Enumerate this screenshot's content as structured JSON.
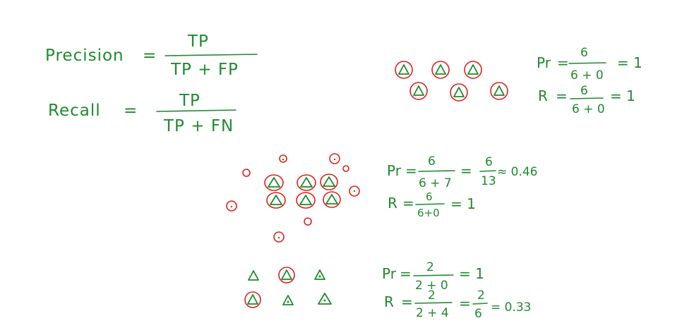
{
  "formulas": {
    "precision": {
      "label": "Precision",
      "eq": "=",
      "numerator": "TP",
      "denominator": "TP + FP"
    },
    "recall": {
      "label": "Recall",
      "eq": "=",
      "numerator": "TP",
      "denominator": "TP + FN"
    }
  },
  "example1": {
    "pr": {
      "label": "Pr",
      "eq": "=",
      "num": "6",
      "den": "6 + 0",
      "result": "= 1"
    },
    "r": {
      "label": "R",
      "eq": "=",
      "num": "6",
      "den": "6 + 0",
      "result": "= 1"
    }
  },
  "example2": {
    "pr": {
      "label": "Pr",
      "eq": "=",
      "num": "6",
      "den": "6 + 7",
      "eq2": "=",
      "num2": "6",
      "den2": "13",
      "approx": "≈ 0.46"
    },
    "r": {
      "label": "R",
      "eq": "=",
      "num": "6",
      "den": "6+0",
      "result": "= 1"
    }
  },
  "example3": {
    "pr": {
      "label": "Pr",
      "eq": "=",
      "num": "2",
      "den": "2 + 0",
      "result": "= 1"
    },
    "r": {
      "label": "R",
      "eq": "=",
      "num": "2",
      "den": "2 + 4",
      "eq2": "=",
      "num2": "2",
      "den2": "6",
      "result": "= 0.33"
    }
  },
  "colors": {
    "ink": "#1f8a2e",
    "circle": "#e0221b"
  }
}
